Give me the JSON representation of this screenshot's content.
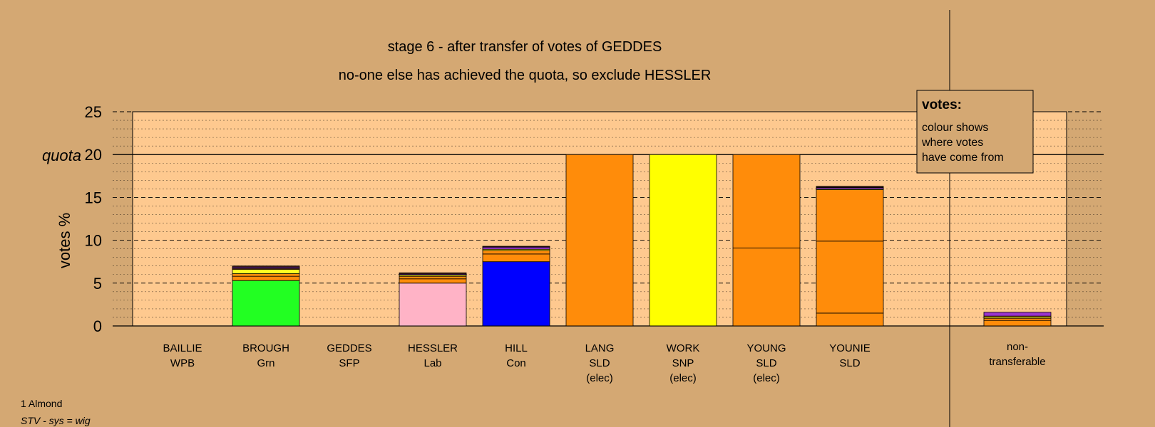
{
  "chart_data": {
    "type": "bar",
    "stacked": true,
    "title": "stage 6 - after transfer of votes of GEDDES",
    "subtitle": "no-one else has achieved the quota, so exclude HESSLER",
    "ylabel": "votes %",
    "ylim": [
      0,
      25
    ],
    "yticks": [
      0,
      5,
      10,
      15,
      20,
      25
    ],
    "quota": 20,
    "quota_label": "quota",
    "grid": true,
    "candidates": [
      {
        "name": "BAILLIE",
        "party": "WPB",
        "note": "",
        "segments": []
      },
      {
        "name": "BROUGH",
        "party": "Grn",
        "note": "",
        "segments": [
          {
            "value": 5.3,
            "color": "#22ff22"
          },
          {
            "value": 0.5,
            "color": "#ff8c0a"
          },
          {
            "value": 0.3,
            "color": "#ff8c0a"
          },
          {
            "value": 0.5,
            "color": "#ffff22"
          },
          {
            "value": 0.1,
            "color": "#ff8c0a"
          },
          {
            "value": 0.15,
            "color": "#9933cc"
          },
          {
            "value": 0.15,
            "color": "#3a1a1a"
          }
        ]
      },
      {
        "name": "GEDDES",
        "party": "SFP",
        "note": "",
        "segments": []
      },
      {
        "name": "HESSLER",
        "party": "Lab",
        "note": "",
        "segments": [
          {
            "value": 5.0,
            "color": "#ffb3c6"
          },
          {
            "value": 0.5,
            "color": "#ff8c0a"
          },
          {
            "value": 0.3,
            "color": "#ff8c0a"
          },
          {
            "value": 0.15,
            "color": "#ffff22"
          },
          {
            "value": 0.1,
            "color": "#9933cc"
          },
          {
            "value": 0.15,
            "color": "#3a1a1a"
          }
        ]
      },
      {
        "name": "HILL",
        "party": "Con",
        "note": "",
        "segments": [
          {
            "value": 7.5,
            "color": "#0000ff"
          },
          {
            "value": 0.9,
            "color": "#ff8c0a"
          },
          {
            "value": 0.4,
            "color": "#ff8c0a"
          },
          {
            "value": 0.15,
            "color": "#ffff22"
          },
          {
            "value": 0.25,
            "color": "#9933cc"
          },
          {
            "value": 0.1,
            "color": "#3a1a1a"
          }
        ]
      },
      {
        "name": "LANG",
        "party": "SLD",
        "note": "(elec)",
        "segments": [
          {
            "value": 20.0,
            "color": "#ff8c0a"
          }
        ]
      },
      {
        "name": "WORK",
        "party": "SNP",
        "note": "(elec)",
        "segments": [
          {
            "value": 20.0,
            "color": "#ffff00"
          }
        ]
      },
      {
        "name": "YOUNG",
        "party": "SLD",
        "note": "(elec)",
        "segments": [
          {
            "value": 9.1,
            "color": "#ff8c0a"
          },
          {
            "value": 10.9,
            "color": "#ff8c0a"
          }
        ]
      },
      {
        "name": "YOUNIE",
        "party": "SLD",
        "note": "",
        "segments": [
          {
            "value": 1.5,
            "color": "#ff8c0a"
          },
          {
            "value": 8.4,
            "color": "#ff8c0a"
          },
          {
            "value": 6.0,
            "color": "#ff8c0a"
          },
          {
            "value": 0.1,
            "color": "#ffff22"
          },
          {
            "value": 0.15,
            "color": "#9933cc"
          },
          {
            "value": 0.15,
            "color": "#3a1a1a"
          }
        ]
      }
    ],
    "nontransferable": {
      "label_line1": "non-",
      "label_line2": "transferable",
      "segments": [
        {
          "value": 0.65,
          "color": "#ff8c0a"
        },
        {
          "value": 0.25,
          "color": "#ff8c0a"
        },
        {
          "value": 0.15,
          "color": "#ffff22"
        },
        {
          "value": 0.1,
          "color": "#ff8c0a"
        },
        {
          "value": 0.45,
          "color": "#9933cc"
        }
      ]
    },
    "legend": {
      "heading": "votes:",
      "lines": [
        "colour shows",
        "where votes",
        "have come from"
      ]
    }
  },
  "footer": {
    "line1": "1 Almond",
    "line2": "STV - sys = wig"
  },
  "colors": {
    "background": "#d4a873",
    "plot_area": "#fec98f",
    "gutter": "#d4a873"
  }
}
